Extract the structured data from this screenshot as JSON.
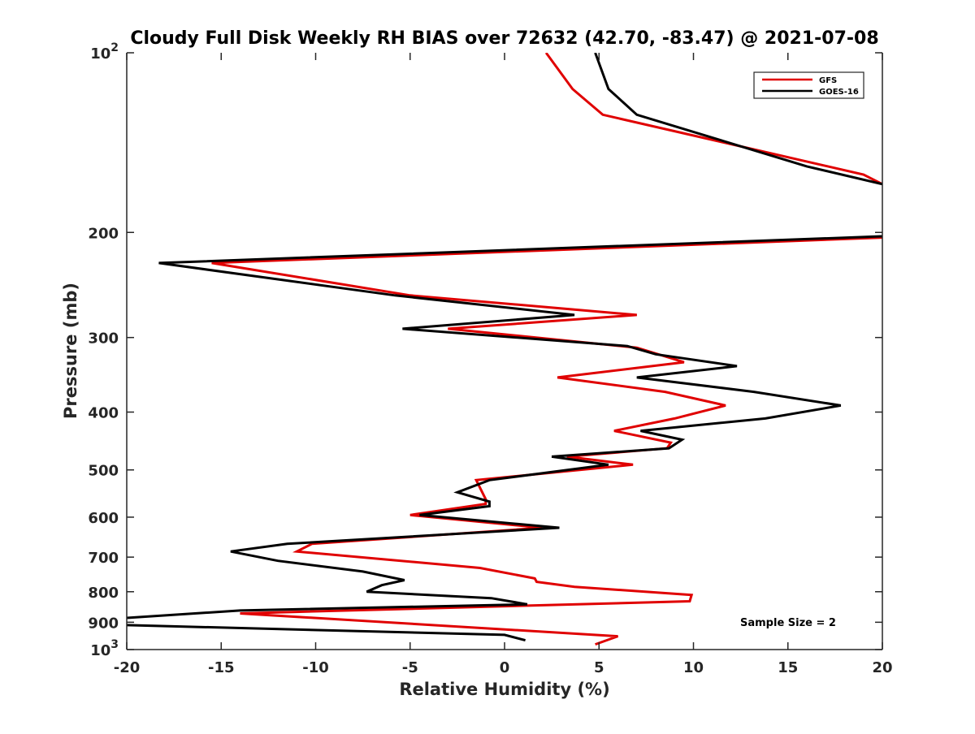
{
  "chart_data": {
    "type": "line",
    "title": "Cloudy Full Disk Weekly RH BIAS over 72632 (42.70, -83.47) @ 2021-07-08",
    "xlabel": "Relative Humidity (%)",
    "ylabel": "Pressure (mb)",
    "xlim": [
      -20,
      20
    ],
    "ylim": [
      100,
      1000
    ],
    "y_scale": "log",
    "y_reversed": true,
    "grid": false,
    "legend_position": "top-right",
    "x_ticks": [
      "-20",
      "-15",
      "-10",
      "-5",
      "0",
      "5",
      "10",
      "15",
      "20"
    ],
    "y_ticks": [
      {
        "base": "10",
        "exp": "2"
      },
      {
        "text": "200"
      },
      {
        "text": "300"
      },
      {
        "text": "400"
      },
      {
        "text": "500"
      },
      {
        "text": "600"
      },
      {
        "text": "700"
      },
      {
        "text": "800"
      },
      {
        "text": "900"
      },
      {
        "base": "10",
        "exp": "3"
      }
    ],
    "series": [
      {
        "name": "GFS",
        "color": "#e00000",
        "points": [
          [
            2.2,
            100
          ],
          [
            3.6,
            115
          ],
          [
            5.2,
            127
          ],
          [
            19.0,
            160
          ],
          [
            20.0,
            166
          ],
          [
            null,
            null
          ],
          [
            20.0,
            204
          ],
          [
            -15.5,
            225
          ],
          [
            -5.0,
            255
          ],
          [
            7.0,
            275
          ],
          [
            -3.0,
            290
          ],
          [
            7.0,
            312
          ],
          [
            9.5,
            330
          ],
          [
            2.8,
            350
          ],
          [
            8.5,
            370
          ],
          [
            11.7,
            390
          ],
          [
            9.0,
            410
          ],
          [
            5.8,
            430
          ],
          [
            8.8,
            450
          ],
          [
            8.6,
            460
          ],
          [
            3.3,
            475
          ],
          [
            6.8,
            490
          ],
          [
            -1.5,
            520
          ],
          [
            -1.0,
            560
          ],
          [
            -1.0,
            570
          ],
          [
            -5.0,
            595
          ],
          [
            2.0,
            625
          ],
          [
            -10.2,
            665
          ],
          [
            -11.0,
            685
          ],
          [
            -1.3,
            730
          ],
          [
            1.6,
            760
          ],
          [
            1.7,
            770
          ],
          [
            3.7,
            785
          ],
          [
            9.9,
            810
          ],
          [
            9.8,
            830
          ],
          [
            -14.0,
            870
          ],
          [
            6.0,
            950
          ],
          [
            4.8,
            980
          ]
        ]
      },
      {
        "name": "GOES-16",
        "color": "#000000",
        "points": [
          [
            4.8,
            100
          ],
          [
            5.5,
            115
          ],
          [
            7.0,
            127
          ],
          [
            16.0,
            155
          ],
          [
            20.0,
            166
          ],
          [
            null,
            null
          ],
          [
            20.0,
            203
          ],
          [
            -18.3,
            225
          ],
          [
            -5.8,
            255
          ],
          [
            3.7,
            275
          ],
          [
            -5.4,
            290
          ],
          [
            6.5,
            310
          ],
          [
            8.0,
            320
          ],
          [
            12.3,
            335
          ],
          [
            7.0,
            350
          ],
          [
            13.2,
            370
          ],
          [
            17.8,
            390
          ],
          [
            13.8,
            410
          ],
          [
            7.2,
            430
          ],
          [
            9.4,
            445
          ],
          [
            8.7,
            460
          ],
          [
            2.5,
            475
          ],
          [
            5.5,
            490
          ],
          [
            -0.8,
            520
          ],
          [
            -2.5,
            545
          ],
          [
            -0.8,
            565
          ],
          [
            -0.8,
            575
          ],
          [
            -4.5,
            595
          ],
          [
            2.9,
            625
          ],
          [
            -11.5,
            665
          ],
          [
            -14.5,
            685
          ],
          [
            -12.0,
            710
          ],
          [
            -7.5,
            740
          ],
          [
            -5.3,
            765
          ],
          [
            -6.5,
            780
          ],
          [
            -7.3,
            800
          ],
          [
            -0.7,
            820
          ],
          [
            1.2,
            840
          ],
          [
            -14.0,
            860
          ],
          [
            -20.0,
            885
          ],
          [
            null,
            null
          ],
          [
            -20.0,
            910
          ],
          [
            0.0,
            945
          ],
          [
            1.1,
            965
          ]
        ]
      }
    ],
    "annotations": [
      "Sample Size = 2"
    ]
  }
}
